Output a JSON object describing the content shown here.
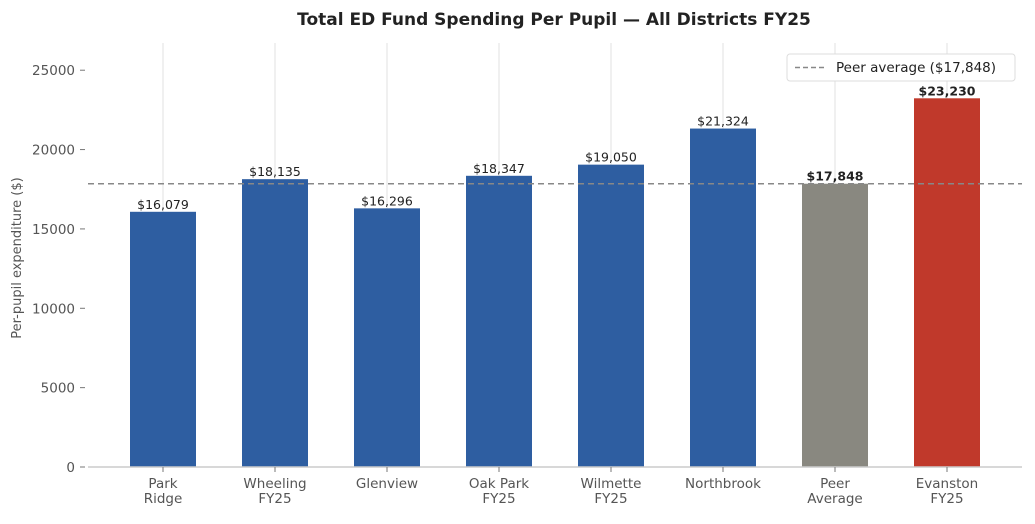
{
  "chart_data": {
    "type": "bar",
    "title": "Total ED Fund Spending Per Pupil — All Districts FY25",
    "xlabel": "",
    "ylabel": "Per-pupil expenditure ($)",
    "ylim": [
      0,
      26714
    ],
    "yticks": [
      0,
      5000,
      10000,
      15000,
      20000,
      25000
    ],
    "grid": "x-only, light",
    "categories": [
      [
        "Park",
        "Ridge"
      ],
      [
        "Wheeling",
        "FY25"
      ],
      [
        "Glenview"
      ],
      [
        "Oak Park",
        "FY25"
      ],
      [
        "Wilmette",
        "FY25"
      ],
      [
        "Northbrook"
      ],
      [
        "Peer",
        "Average"
      ],
      [
        "Evanston",
        "FY25"
      ]
    ],
    "values": [
      16079,
      18135,
      16296,
      18347,
      19050,
      21324,
      17848,
      23230
    ],
    "data_labels": [
      "$16,079",
      "$18,135",
      "$16,296",
      "$18,347",
      "$19,050",
      "$21,324",
      "$17,848",
      "$23,230"
    ],
    "bold_labels": [
      false,
      false,
      false,
      false,
      false,
      false,
      true,
      true
    ],
    "colors": [
      "#2e5ea1",
      "#2e5ea1",
      "#2e5ea1",
      "#2e5ea1",
      "#2e5ea1",
      "#2e5ea1",
      "#898880",
      "#c0392b"
    ],
    "reference_line": {
      "value": 17848,
      "style": "dashed",
      "color": "#888888",
      "label": "Peer average ($17,848)"
    },
    "legend_placement": "top-right"
  }
}
